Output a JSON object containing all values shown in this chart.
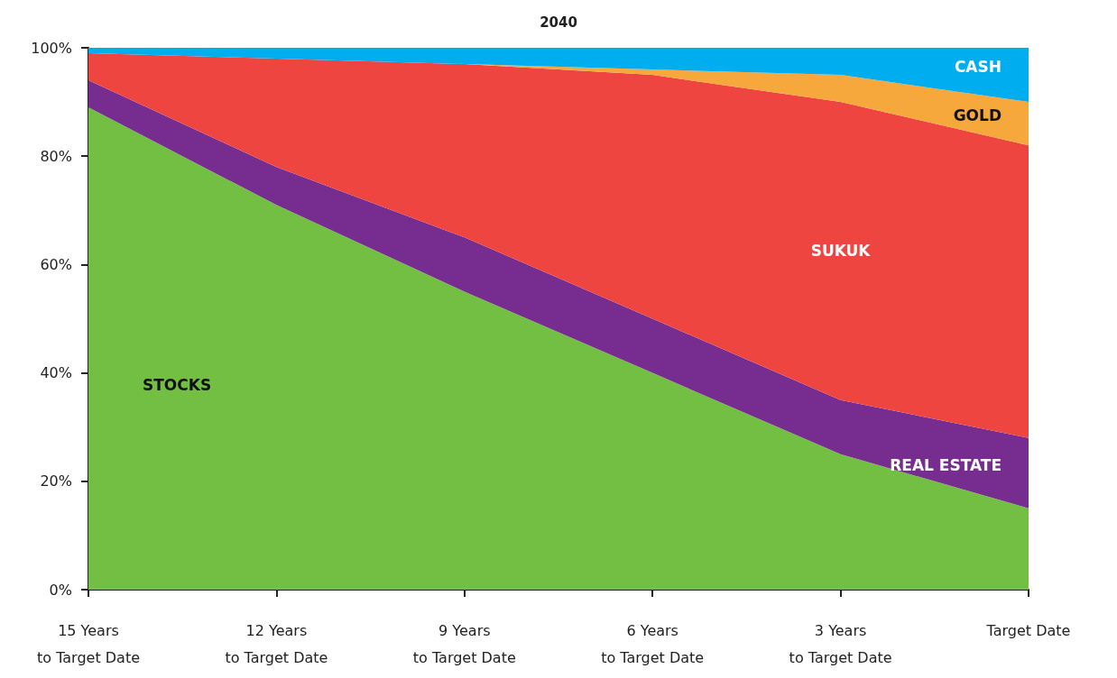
{
  "chart_data": {
    "type": "area",
    "title": "2040",
    "stacked": true,
    "categories": [
      "15 Years\nto Target Date",
      "12 Years\nto Target Date",
      "9 Years\nto Target Date",
      "6 Years\nto Target Date",
      "3 Years\nto Target Date",
      "Target Date"
    ],
    "ylim": [
      0,
      100
    ],
    "yticks": [
      {
        "value": 0,
        "label": "0%"
      },
      {
        "value": 20,
        "label": "20%"
      },
      {
        "value": 40,
        "label": "40%"
      },
      {
        "value": 60,
        "label": "60%"
      },
      {
        "value": 80,
        "label": "80%"
      },
      {
        "value": 100,
        "label": "100%"
      }
    ],
    "grid": false,
    "series": [
      {
        "name": "STOCKS",
        "color": "#72bf44",
        "values": [
          89,
          71,
          55,
          40,
          25,
          15
        ]
      },
      {
        "name": "REAL ESTATE",
        "color": "#772d8f",
        "values": [
          5,
          7,
          10,
          10,
          10,
          13
        ]
      },
      {
        "name": "SUKUK",
        "color": "#ef4540",
        "values": [
          5,
          20,
          32,
          45,
          55,
          54
        ]
      },
      {
        "name": "GOLD",
        "color": "#f6a83c",
        "values": [
          0,
          0,
          0,
          1,
          5,
          8
        ]
      },
      {
        "name": "CASH",
        "color": "#00aeef",
        "values": [
          1,
          2,
          3,
          4,
          5,
          10
        ]
      }
    ]
  }
}
